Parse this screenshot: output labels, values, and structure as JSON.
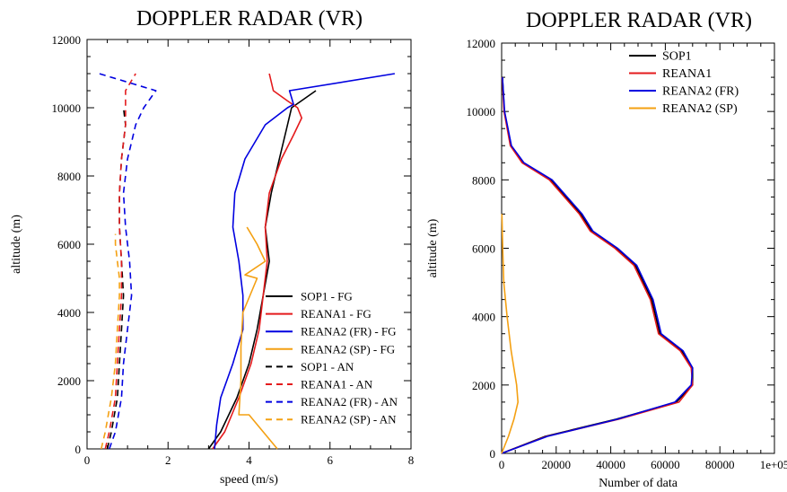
{
  "chart_data": [
    {
      "type": "line",
      "title": "DOPPLER RADAR (VR)",
      "xlabel": "speed (m/s)",
      "ylabel": "altitude (m)",
      "xlim": [
        0,
        8
      ],
      "ylim": [
        0,
        12000
      ],
      "xticks": [
        "0",
        "2",
        "4",
        "6",
        "8"
      ],
      "yticks": [
        "0",
        "2000",
        "4000",
        "6000",
        "8000",
        "10000",
        "12000"
      ],
      "legend_placement": "lower-right",
      "grid": false,
      "series": [
        {
          "name": "SOP1 - FG",
          "color": "#000000",
          "dash": false,
          "x": [
            3.0,
            3.3,
            3.7,
            4.0,
            4.2,
            4.35,
            4.5,
            4.4,
            4.55,
            4.75,
            4.95,
            5.05,
            5.65
          ],
          "y": [
            0,
            500,
            1500,
            2500,
            3500,
            4500,
            5500,
            6500,
            7500,
            8500,
            9500,
            10000,
            10500
          ]
        },
        {
          "name": "REANA1 - FG",
          "color": "#e41a1c",
          "dash": false,
          "x": [
            3.1,
            3.4,
            3.75,
            4.05,
            4.25,
            4.35,
            4.45,
            4.4,
            4.5,
            4.8,
            5.1,
            5.3,
            5.2,
            4.95,
            4.6,
            4.5
          ],
          "y": [
            0,
            500,
            1500,
            2500,
            3500,
            4500,
            5500,
            6500,
            7500,
            8500,
            9200,
            9700,
            10000,
            10200,
            10500,
            11000
          ]
        },
        {
          "name": "REANA2 (FR) - FG",
          "color": "#0000e0",
          "dash": false,
          "x": [
            3.15,
            3.2,
            3.3,
            3.6,
            3.85,
            3.85,
            3.75,
            3.6,
            3.65,
            3.9,
            4.4,
            4.95,
            5.1,
            5.0,
            7.6
          ],
          "y": [
            0,
            700,
            1500,
            2500,
            3500,
            4500,
            5500,
            6500,
            7500,
            8500,
            9500,
            10000,
            10100,
            10500,
            11000
          ]
        },
        {
          "name": "REANA2 (SP) - FG",
          "color": "#f4a012",
          "dash": false,
          "x": [
            4.7,
            4.0,
            3.75,
            3.8,
            3.8,
            3.85,
            4.2,
            3.9,
            4.4,
            4.2,
            3.95
          ],
          "y": [
            0,
            1000,
            1000,
            2000,
            3000,
            4000,
            5000,
            5100,
            5500,
            6000,
            6500
          ]
        },
        {
          "name": "SOP1 - AN",
          "color": "#000000",
          "dash": true,
          "x": [
            0.5,
            0.6,
            0.75,
            0.8,
            0.85,
            0.9,
            0.85,
            0.8,
            0.8,
            0.85,
            0.95,
            0.9
          ],
          "y": [
            0,
            500,
            1500,
            2500,
            3500,
            4500,
            5500,
            6500,
            7500,
            8500,
            9500,
            10000
          ]
        },
        {
          "name": "REANA1 - AN",
          "color": "#e41a1c",
          "dash": true,
          "x": [
            0.45,
            0.55,
            0.7,
            0.75,
            0.8,
            0.85,
            0.85,
            0.8,
            0.8,
            0.85,
            0.95,
            0.95,
            1.2
          ],
          "y": [
            0,
            500,
            1500,
            2500,
            3500,
            4500,
            5500,
            6500,
            7500,
            8500,
            9500,
            10500,
            11000
          ]
        },
        {
          "name": "REANA2 (FR) - AN",
          "color": "#0000e0",
          "dash": true,
          "x": [
            0.55,
            0.7,
            0.85,
            0.9,
            1.0,
            1.1,
            1.05,
            0.95,
            0.9,
            1.0,
            1.2,
            1.4,
            1.7,
            0.3
          ],
          "y": [
            0,
            500,
            1500,
            2500,
            3500,
            4500,
            5500,
            6500,
            7500,
            8500,
            9500,
            10000,
            10500,
            11000
          ]
        },
        {
          "name": "REANA2 (SP) - AN",
          "color": "#f4a012",
          "dash": true,
          "x": [
            0.35,
            0.45,
            0.6,
            0.7,
            0.75,
            0.8,
            0.8,
            0.75,
            0.7,
            0.7
          ],
          "y": [
            0,
            500,
            1500,
            2500,
            3500,
            4500,
            5000,
            5500,
            6000,
            6300
          ]
        }
      ]
    },
    {
      "type": "line",
      "title": "DOPPLER RADAR (VR)",
      "xlabel": "Number of data",
      "ylabel": "altitude (m)",
      "xlim": [
        0,
        100000
      ],
      "ylim": [
        0,
        12000
      ],
      "xticks": [
        "0",
        "20000",
        "40000",
        "60000",
        "80000",
        "1e+05"
      ],
      "yticks": [
        "0",
        "2000",
        "4000",
        "6000",
        "8000",
        "10000",
        "12000"
      ],
      "legend_placement": "top-right",
      "grid": false,
      "series": [
        {
          "name": "SOP1",
          "color": "#000000",
          "dash": false,
          "x": [
            0,
            16000,
            42000,
            64000,
            70000,
            70000,
            66000,
            58000,
            55000,
            52000,
            49000,
            42000,
            33000,
            29000,
            18000,
            8000,
            3500,
            1000,
            300
          ],
          "y": [
            0,
            500,
            1000,
            1500,
            2000,
            2500,
            3000,
            3500,
            4500,
            5000,
            5500,
            6000,
            6500,
            7000,
            8000,
            8500,
            9000,
            10000,
            11000
          ]
        },
        {
          "name": "REANA1",
          "color": "#e41a1c",
          "dash": false,
          "x": [
            0,
            16500,
            43000,
            65000,
            70000,
            69500,
            65500,
            57500,
            54500,
            51500,
            48500,
            41500,
            32500,
            28500,
            17500,
            7500,
            3200,
            900,
            200
          ],
          "y": [
            0,
            500,
            1000,
            1500,
            2000,
            2500,
            3000,
            3500,
            4500,
            5000,
            5500,
            6000,
            6500,
            7000,
            8000,
            8500,
            9000,
            10000,
            11000
          ]
        },
        {
          "name": "REANA2 (FR)",
          "color": "#0000e0",
          "dash": false,
          "x": [
            0,
            16800,
            42500,
            63500,
            69500,
            70000,
            66500,
            58500,
            55500,
            52500,
            49500,
            42500,
            33500,
            29500,
            18500,
            8200,
            3600,
            1100,
            300
          ],
          "y": [
            0,
            500,
            1000,
            1500,
            2000,
            2500,
            3000,
            3500,
            4500,
            5000,
            5500,
            6000,
            6500,
            7000,
            8000,
            8500,
            9000,
            10000,
            11000
          ]
        },
        {
          "name": "REANA2 (SP)",
          "color": "#f4a012",
          "dash": false,
          "x": [
            0,
            2500,
            4500,
            6000,
            5500,
            3500,
            2000,
            800,
            400,
            100
          ],
          "y": [
            0,
            500,
            1000,
            1500,
            2000,
            3000,
            4000,
            5000,
            6000,
            7000
          ]
        }
      ]
    }
  ]
}
